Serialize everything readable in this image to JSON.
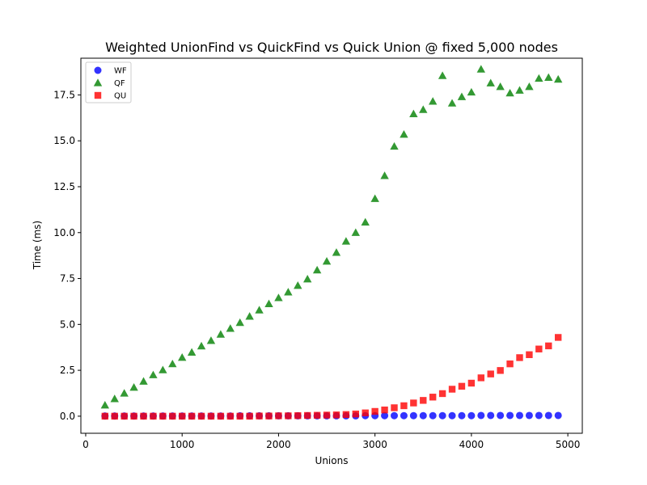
{
  "chart_data": {
    "type": "scatter",
    "title": "Weighted UnionFind vs QuickFind vs Quick Union @ fixed 5,000 nodes",
    "xlabel": "Unions",
    "ylabel": "Time (ms)",
    "xlim": [
      -50,
      5150
    ],
    "ylim": [
      -0.93,
      19.5
    ],
    "xticks": [
      0,
      1000,
      2000,
      3000,
      4000,
      5000
    ],
    "xtick_labels": [
      "0",
      "1000",
      "2000",
      "3000",
      "4000",
      "5000"
    ],
    "yticks": [
      0,
      2.5,
      5,
      7.5,
      10,
      12.5,
      15,
      17.5
    ],
    "ytick_labels": [
      "0.0",
      "2.5",
      "5.0",
      "7.5",
      "10.0",
      "12.5",
      "15.0",
      "17.5"
    ],
    "grid": false,
    "legend_position": "top-left",
    "x": [
      200,
      300,
      400,
      500,
      600,
      700,
      800,
      900,
      1000,
      1100,
      1200,
      1300,
      1400,
      1500,
      1600,
      1700,
      1800,
      1900,
      2000,
      2100,
      2200,
      2300,
      2400,
      2500,
      2600,
      2700,
      2800,
      2900,
      3000,
      3100,
      3200,
      3300,
      3400,
      3500,
      3600,
      3700,
      3800,
      3900,
      4000,
      4100,
      4200,
      4300,
      4400,
      4500,
      4600,
      4700,
      4800,
      4900
    ],
    "series": [
      {
        "name": "WF",
        "marker": "circle",
        "color": "#0000ff",
        "values": [
          0.01,
          0.01,
          0.01,
          0.01,
          0.01,
          0.01,
          0.01,
          0.01,
          0.01,
          0.01,
          0.01,
          0.01,
          0.01,
          0.01,
          0.02,
          0.02,
          0.02,
          0.02,
          0.02,
          0.02,
          0.02,
          0.02,
          0.02,
          0.02,
          0.02,
          0.02,
          0.02,
          0.03,
          0.03,
          0.03,
          0.03,
          0.03,
          0.03,
          0.03,
          0.03,
          0.03,
          0.03,
          0.03,
          0.03,
          0.04,
          0.04,
          0.04,
          0.04,
          0.04,
          0.04,
          0.04,
          0.04,
          0.04
        ]
      },
      {
        "name": "QF",
        "marker": "triangle",
        "color": "#008000",
        "values": [
          0.6,
          0.95,
          1.25,
          1.57,
          1.9,
          2.25,
          2.52,
          2.85,
          3.2,
          3.48,
          3.82,
          4.12,
          4.46,
          4.78,
          5.1,
          5.44,
          5.78,
          6.12,
          6.45,
          6.76,
          7.12,
          7.47,
          7.96,
          8.44,
          8.92,
          9.53,
          10.0,
          10.57,
          11.85,
          13.1,
          14.7,
          15.35,
          16.47,
          16.7,
          17.15,
          18.55,
          17.05,
          17.4,
          17.65,
          18.9,
          18.15,
          17.95,
          17.6,
          17.75,
          17.95,
          18.4,
          18.45,
          18.35
        ]
      },
      {
        "name": "QU",
        "marker": "square",
        "color": "#ff0000",
        "values": [
          0.0,
          0.0,
          0.0,
          0.0,
          0.0,
          0.0,
          0.0,
          0.0,
          0.0,
          0.0,
          0.0,
          0.0,
          0.0,
          0.0,
          0.0,
          0.0,
          0.01,
          0.01,
          0.02,
          0.02,
          0.03,
          0.04,
          0.05,
          0.06,
          0.07,
          0.09,
          0.12,
          0.18,
          0.26,
          0.34,
          0.46,
          0.57,
          0.72,
          0.86,
          1.04,
          1.23,
          1.47,
          1.63,
          1.8,
          2.09,
          2.3,
          2.49,
          2.85,
          3.19,
          3.35,
          3.66,
          3.83,
          4.29
        ]
      }
    ]
  }
}
